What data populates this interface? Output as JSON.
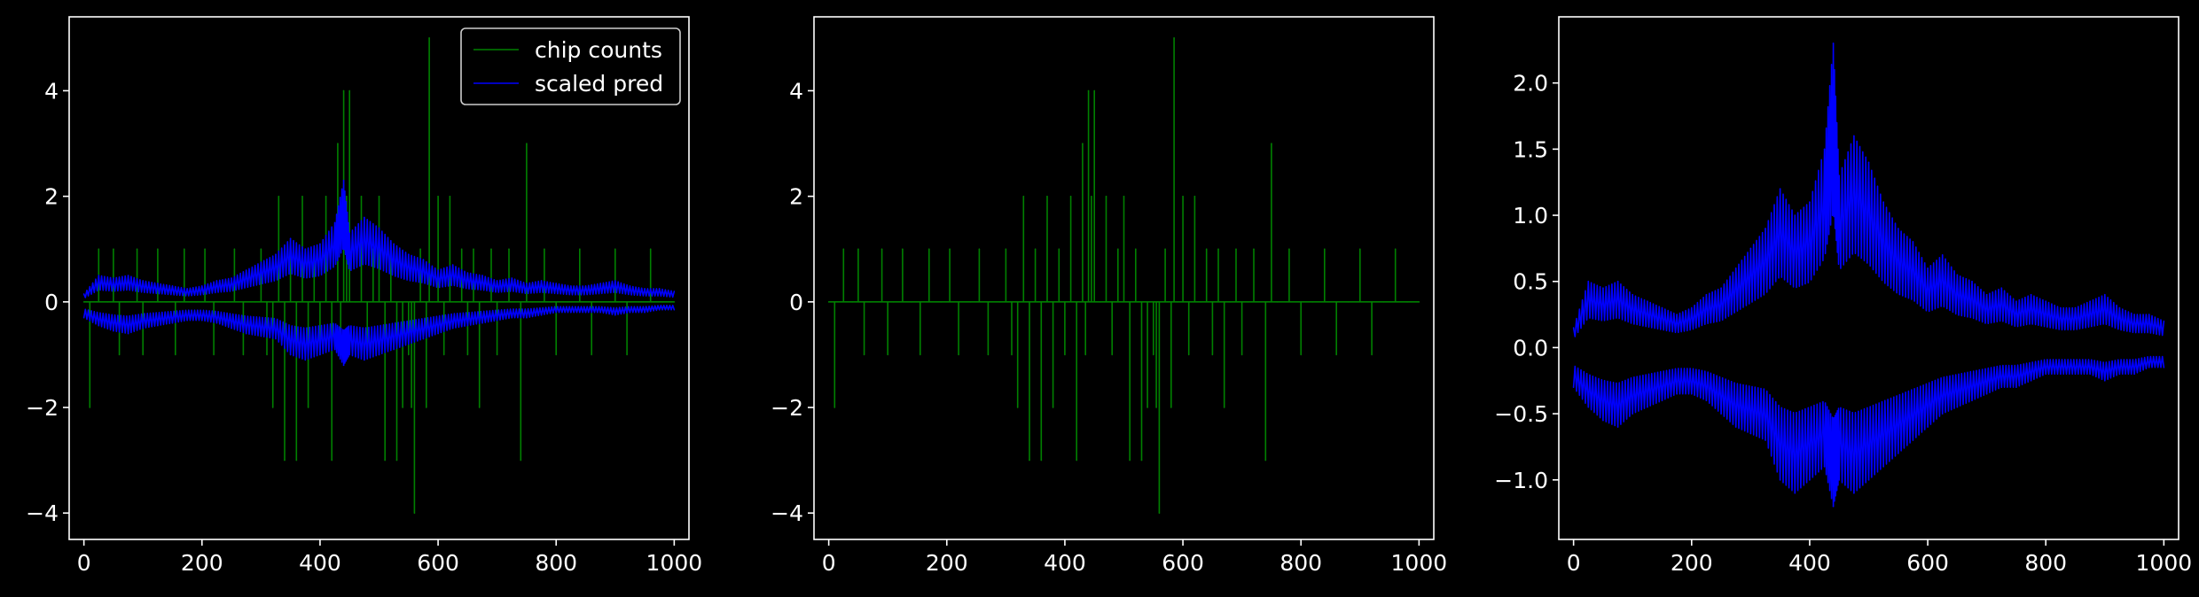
{
  "chart_data": [
    {
      "type": "line",
      "xlim": [
        -25,
        1025
      ],
      "ylim": [
        -4.5,
        5.4
      ],
      "xticks": [
        0,
        200,
        400,
        600,
        800,
        1000
      ],
      "yticks": [
        -4,
        -2,
        0,
        2,
        4
      ],
      "series": [
        {
          "name": "chip counts",
          "color": "#008000",
          "x": [
            0,
            10,
            25,
            40,
            50,
            60,
            70,
            90,
            100,
            110,
            125,
            140,
            155,
            170,
            190,
            205,
            220,
            240,
            255,
            270,
            290,
            300,
            310,
            320,
            330,
            340,
            350,
            360,
            370,
            380,
            390,
            400,
            410,
            420,
            430,
            435,
            440,
            445,
            450,
            460,
            470,
            480,
            490,
            500,
            510,
            520,
            530,
            540,
            550,
            555,
            560,
            570,
            580,
            585,
            590,
            600,
            610,
            620,
            630,
            640,
            650,
            660,
            670,
            680,
            690,
            700,
            710,
            720,
            740,
            750,
            760,
            780,
            800,
            820,
            840,
            860,
            880,
            900,
            920,
            940,
            960,
            980,
            1000
          ],
          "y": [
            0,
            -2,
            1,
            0,
            1,
            -1,
            0,
            1,
            -1,
            0,
            1,
            0,
            -1,
            1,
            0,
            1,
            -1,
            0,
            1,
            -1,
            0,
            1,
            -1,
            -2,
            2,
            -3,
            1,
            -3,
            2,
            -2,
            1,
            -1,
            2,
            -3,
            3,
            -1,
            4,
            2,
            4,
            0,
            2,
            -1,
            1,
            2,
            -3,
            1,
            -3,
            -2,
            -1,
            -2,
            -4,
            1,
            -2,
            5,
            0,
            2,
            -1,
            2,
            0,
            1,
            -1,
            1,
            -2,
            0,
            1,
            -1,
            0,
            1,
            -3,
            3,
            0,
            1,
            -1,
            0,
            1,
            -1,
            0,
            1,
            -1,
            0,
            1,
            0,
            0
          ]
        },
        {
          "name": "scaled pred",
          "color": "#0000ff",
          "x": [
            0,
            25,
            50,
            75,
            100,
            125,
            150,
            175,
            200,
            225,
            250,
            275,
            300,
            325,
            350,
            375,
            400,
            425,
            440,
            450,
            475,
            500,
            525,
            550,
            575,
            600,
            625,
            650,
            675,
            700,
            725,
            750,
            775,
            800,
            825,
            850,
            875,
            900,
            925,
            950,
            975,
            1000
          ],
          "upper": [
            0.15,
            0.5,
            0.45,
            0.5,
            0.4,
            0.35,
            0.3,
            0.25,
            0.3,
            0.4,
            0.45,
            0.6,
            0.75,
            0.9,
            1.2,
            1.0,
            1.1,
            1.5,
            2.3,
            1.3,
            1.6,
            1.4,
            1.1,
            0.9,
            0.8,
            0.6,
            0.7,
            0.55,
            0.5,
            0.4,
            0.45,
            0.35,
            0.4,
            0.35,
            0.3,
            0.3,
            0.35,
            0.4,
            0.3,
            0.25,
            0.25,
            0.2
          ],
          "lower": [
            -0.3,
            -0.45,
            -0.55,
            -0.6,
            -0.5,
            -0.45,
            -0.4,
            -0.35,
            -0.35,
            -0.4,
            -0.5,
            -0.6,
            -0.65,
            -0.7,
            -1.0,
            -1.1,
            -1.0,
            -0.9,
            -1.2,
            -1.0,
            -1.1,
            -1.0,
            -0.9,
            -0.8,
            -0.7,
            -0.6,
            -0.5,
            -0.45,
            -0.4,
            -0.35,
            -0.3,
            -0.3,
            -0.25,
            -0.2,
            -0.2,
            -0.2,
            -0.2,
            -0.25,
            -0.2,
            -0.2,
            -0.15,
            -0.15
          ]
        }
      ],
      "legend": {
        "placement": "top-right",
        "entries": [
          "chip counts",
          "scaled pred"
        ]
      }
    },
    {
      "type": "line",
      "xlim": [
        -25,
        1025
      ],
      "ylim": [
        -4.5,
        5.4
      ],
      "xticks": [
        0,
        200,
        400,
        600,
        800,
        1000
      ],
      "yticks": [
        -4,
        -2,
        0,
        2,
        4
      ],
      "series": [
        {
          "name": "chip counts",
          "color": "#008000",
          "x": [
            0,
            10,
            25,
            40,
            50,
            60,
            70,
            90,
            100,
            110,
            125,
            140,
            155,
            170,
            190,
            205,
            220,
            240,
            255,
            270,
            290,
            300,
            310,
            320,
            330,
            340,
            350,
            360,
            370,
            380,
            390,
            400,
            410,
            420,
            430,
            435,
            440,
            445,
            450,
            460,
            470,
            480,
            490,
            500,
            510,
            520,
            530,
            540,
            550,
            555,
            560,
            570,
            580,
            585,
            590,
            600,
            610,
            620,
            630,
            640,
            650,
            660,
            670,
            680,
            690,
            700,
            710,
            720,
            740,
            750,
            760,
            780,
            800,
            820,
            840,
            860,
            880,
            900,
            920,
            940,
            960,
            980,
            1000
          ],
          "y": [
            0,
            -2,
            1,
            0,
            1,
            -1,
            0,
            1,
            -1,
            0,
            1,
            0,
            -1,
            1,
            0,
            1,
            -1,
            0,
            1,
            -1,
            0,
            1,
            -1,
            -2,
            2,
            -3,
            1,
            -3,
            2,
            -2,
            1,
            -1,
            2,
            -3,
            3,
            -1,
            4,
            2,
            4,
            0,
            2,
            -1,
            1,
            2,
            -3,
            1,
            -3,
            -2,
            -1,
            -2,
            -4,
            1,
            -2,
            5,
            0,
            2,
            -1,
            2,
            0,
            1,
            -1,
            1,
            -2,
            0,
            1,
            -1,
            0,
            1,
            -3,
            3,
            0,
            1,
            -1,
            0,
            1,
            -1,
            0,
            1,
            -1,
            0,
            1,
            0,
            0
          ]
        }
      ]
    },
    {
      "type": "line",
      "xlim": [
        -25,
        1025
      ],
      "ylim": [
        -1.45,
        2.5
      ],
      "xticks": [
        0,
        200,
        400,
        600,
        800,
        1000
      ],
      "yticks": [
        -1.0,
        -0.5,
        0.0,
        0.5,
        1.0,
        1.5,
        2.0
      ],
      "ytick_labels": [
        "−1.0",
        "−0.5",
        "0.0",
        "0.5",
        "1.0",
        "1.5",
        "2.0"
      ],
      "series": [
        {
          "name": "scaled pred",
          "color": "#0000ff",
          "x": [
            0,
            25,
            50,
            75,
            100,
            125,
            150,
            175,
            200,
            225,
            250,
            275,
            300,
            325,
            350,
            375,
            400,
            425,
            440,
            450,
            475,
            500,
            525,
            550,
            575,
            600,
            625,
            650,
            675,
            700,
            725,
            750,
            775,
            800,
            825,
            850,
            875,
            900,
            925,
            950,
            975,
            1000
          ],
          "upper": [
            0.15,
            0.5,
            0.45,
            0.5,
            0.4,
            0.35,
            0.3,
            0.25,
            0.3,
            0.4,
            0.45,
            0.6,
            0.75,
            0.9,
            1.2,
            1.0,
            1.1,
            1.5,
            2.3,
            1.3,
            1.6,
            1.4,
            1.1,
            0.9,
            0.8,
            0.6,
            0.7,
            0.55,
            0.5,
            0.4,
            0.45,
            0.35,
            0.4,
            0.35,
            0.3,
            0.3,
            0.35,
            0.4,
            0.3,
            0.25,
            0.25,
            0.2
          ],
          "lower": [
            -0.3,
            -0.45,
            -0.55,
            -0.6,
            -0.5,
            -0.45,
            -0.4,
            -0.35,
            -0.35,
            -0.4,
            -0.5,
            -0.6,
            -0.65,
            -0.7,
            -1.0,
            -1.1,
            -1.0,
            -0.9,
            -1.2,
            -1.0,
            -1.1,
            -1.0,
            -0.9,
            -0.8,
            -0.7,
            -0.6,
            -0.5,
            -0.45,
            -0.4,
            -0.35,
            -0.3,
            -0.3,
            -0.25,
            -0.2,
            -0.2,
            -0.2,
            -0.2,
            -0.25,
            -0.2,
            -0.2,
            -0.15,
            -0.15
          ]
        }
      ]
    }
  ]
}
